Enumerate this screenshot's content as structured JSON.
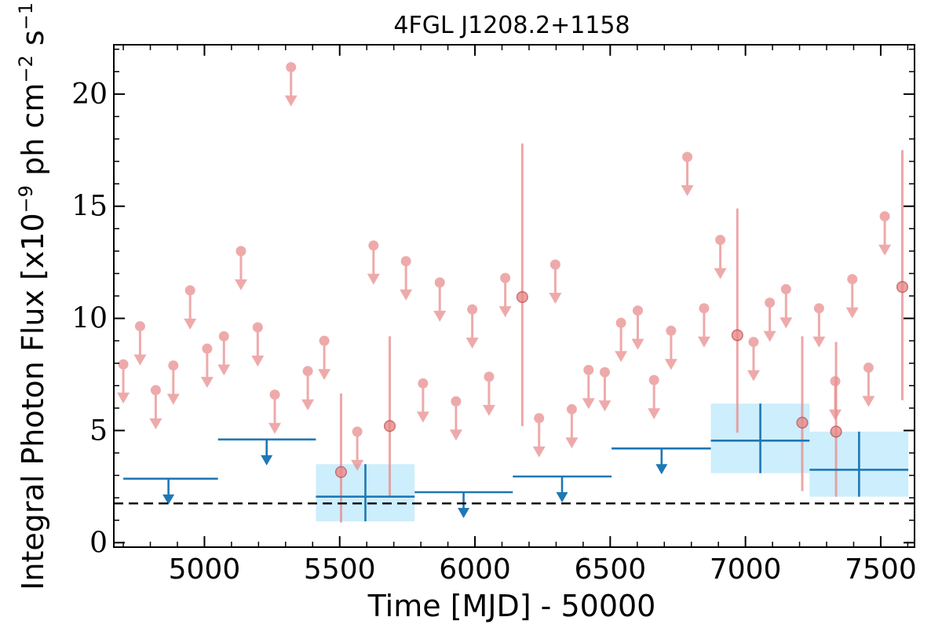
{
  "chart_data": {
    "type": "scatter",
    "title": "4FGL J1208.2+1158",
    "xlabel": "Time [MJD] - 50000",
    "ylabel": "Integral Photon Flux [x10",
    "ylabel_exp": "−9",
    "ylabel_units": " ph cm",
    "ylabel_units_exp": "−2",
    "ylabel_s": " s",
    "ylabel_s_exp": "−1",
    "ylabel_close": "]",
    "xlim": [
      4665,
      7625
    ],
    "ylim": [
      -0.2,
      22.2
    ],
    "x_ticks": [
      5000,
      5500,
      6000,
      6500,
      7000,
      7500
    ],
    "x_tick_labels": [
      "5000",
      "5500",
      "6000",
      "6500",
      "7000",
      "7500"
    ],
    "y_ticks": [
      0,
      5,
      10,
      15,
      20
    ],
    "y_tick_labels": [
      "0",
      "5",
      "10",
      "15",
      "20"
    ],
    "reference_line": {
      "y": 1.75,
      "style": "dashed",
      "color": "#000000"
    },
    "colors": {
      "short_bins": "#e88a8a",
      "long_bins": "#1f77b4",
      "long_bins_fill": "#cdeefc"
    },
    "short_bins_upper_limits": [
      {
        "x": 4700,
        "y": 7.95
      },
      {
        "x": 4762,
        "y": 9.65
      },
      {
        "x": 4820,
        "y": 6.8
      },
      {
        "x": 4885,
        "y": 7.9
      },
      {
        "x": 4947,
        "y": 11.25
      },
      {
        "x": 5010,
        "y": 8.65
      },
      {
        "x": 5072,
        "y": 9.2
      },
      {
        "x": 5135,
        "y": 13.0
      },
      {
        "x": 5197,
        "y": 9.6
      },
      {
        "x": 5260,
        "y": 6.6
      },
      {
        "x": 5320,
        "y": 21.2
      },
      {
        "x": 5382,
        "y": 7.65
      },
      {
        "x": 5443,
        "y": 9.0
      },
      {
        "x": 5565,
        "y": 4.95
      },
      {
        "x": 5625,
        "y": 13.25
      },
      {
        "x": 5745,
        "y": 12.55
      },
      {
        "x": 5808,
        "y": 7.1
      },
      {
        "x": 5870,
        "y": 11.6
      },
      {
        "x": 5930,
        "y": 6.3
      },
      {
        "x": 5990,
        "y": 10.4
      },
      {
        "x": 6052,
        "y": 7.4
      },
      {
        "x": 6112,
        "y": 11.8
      },
      {
        "x": 6237,
        "y": 5.55
      },
      {
        "x": 6297,
        "y": 12.4
      },
      {
        "x": 6358,
        "y": 5.95
      },
      {
        "x": 6420,
        "y": 7.7
      },
      {
        "x": 6480,
        "y": 7.6
      },
      {
        "x": 6540,
        "y": 9.8
      },
      {
        "x": 6602,
        "y": 10.35
      },
      {
        "x": 6662,
        "y": 7.25
      },
      {
        "x": 6725,
        "y": 9.45
      },
      {
        "x": 6785,
        "y": 17.2
      },
      {
        "x": 6847,
        "y": 10.45
      },
      {
        "x": 6907,
        "y": 13.5
      },
      {
        "x": 7030,
        "y": 8.95
      },
      {
        "x": 7090,
        "y": 10.7
      },
      {
        "x": 7150,
        "y": 11.3
      },
      {
        "x": 7272,
        "y": 10.45
      },
      {
        "x": 7332,
        "y": 7.2
      },
      {
        "x": 7395,
        "y": 11.75
      },
      {
        "x": 7455,
        "y": 7.8
      },
      {
        "x": 7515,
        "y": 14.55
      }
    ],
    "short_bins_detections": [
      {
        "x": 5505,
        "y": 3.15,
        "y_low": 0.9,
        "y_high": 6.65
      },
      {
        "x": 5685,
        "y": 5.2,
        "y_low": 2.05,
        "y_high": 9.2
      },
      {
        "x": 6175,
        "y": 10.95,
        "y_low": 5.2,
        "y_high": 17.8
      },
      {
        "x": 6970,
        "y": 9.25,
        "y_low": 4.9,
        "y_high": 14.9
      },
      {
        "x": 7210,
        "y": 5.35,
        "y_low": 2.3,
        "y_high": 9.2
      },
      {
        "x": 7335,
        "y": 4.95,
        "y_low": 2.05,
        "y_high": 8.95
      },
      {
        "x": 7580,
        "y": 11.4,
        "y_low": 6.35,
        "y_high": 17.5
      }
    ],
    "long_bins_upper_limits": [
      {
        "x": 4867,
        "x_low": 4700,
        "x_high": 5050,
        "y": 2.85
      },
      {
        "x": 5230,
        "x_low": 5050,
        "x_high": 5412,
        "y": 4.6
      },
      {
        "x": 5958,
        "x_low": 5777,
        "x_high": 6140,
        "y": 2.25
      },
      {
        "x": 6322,
        "x_low": 6140,
        "x_high": 6505,
        "y": 2.95
      },
      {
        "x": 6690,
        "x_low": 6505,
        "x_high": 6872,
        "y": 4.2
      }
    ],
    "long_bins_detections": [
      {
        "x": 5595,
        "x_low": 5412,
        "x_high": 5777,
        "y": 2.05,
        "y_low": 0.95,
        "y_high": 3.5
      },
      {
        "x": 7055,
        "x_low": 6872,
        "x_high": 7237,
        "y": 4.55,
        "y_low": 3.1,
        "y_high": 6.2
      },
      {
        "x": 7420,
        "x_low": 7237,
        "x_high": 7602,
        "y": 3.25,
        "y_low": 2.05,
        "y_high": 4.95
      }
    ]
  }
}
